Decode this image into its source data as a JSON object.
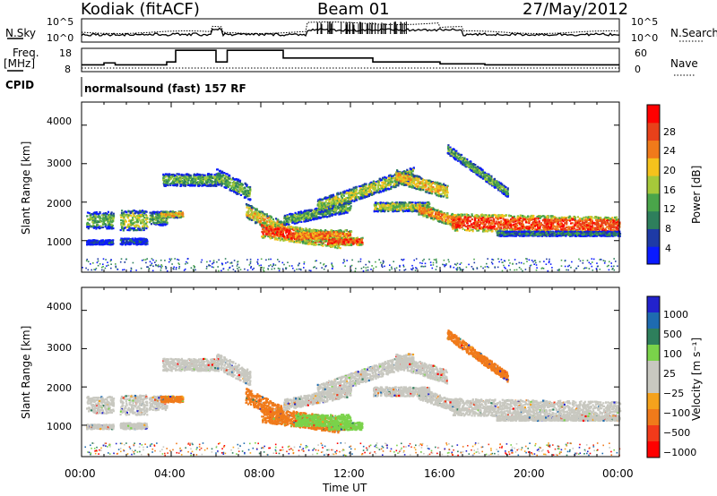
{
  "header": {
    "site": "Kodiak (fitACF)",
    "beam": "Beam 01",
    "date": "27/May/2012"
  },
  "left_labels": {
    "nsky": "N.Sky",
    "freq": "Freq.",
    "freq_unit": "[MHz]",
    "cpid": "CPID"
  },
  "right_labels": {
    "nsearch": "N.Search",
    "nave": "Nave"
  },
  "cpid_text": "normalsound (fast) 157 RF",
  "colors": {
    "power_scale": [
      "#0a1aff",
      "#1e3aa6",
      "#2e7f5c",
      "#4aa54a",
      "#a6c93a",
      "#f5c21c",
      "#f07a1a",
      "#e8411a",
      "#ff0000"
    ],
    "velocity_scale": [
      "#ff0000",
      "#f23a1a",
      "#f07a1a",
      "#f5a21c",
      "#c8c8c0",
      "#c8c8c0",
      "#7ad34a",
      "#2e7f5c",
      "#1e6bb0",
      "#2222cc"
    ]
  },
  "chart_data": [
    {
      "type": "line",
      "name": "noise",
      "series": [
        {
          "name": "N.Sky"
        },
        {
          "name": "N.Search"
        }
      ],
      "yticks": [
        "10^5",
        "10^0"
      ]
    },
    {
      "type": "line",
      "name": "frequency",
      "series": [
        {
          "name": "Freq."
        },
        {
          "name": "Nave"
        }
      ],
      "yticks_left": [
        "18",
        "8"
      ],
      "yticks_right": [
        "60",
        "0"
      ],
      "freq_steps": [
        {
          "t": 0.0,
          "v": 10.5
        },
        {
          "t": 1.0,
          "v": 11.5
        },
        {
          "t": 1.5,
          "v": 10.5
        },
        {
          "t": 3.8,
          "v": 12.0
        },
        {
          "t": 4.2,
          "v": 18.0
        },
        {
          "t": 6.0,
          "v": 12.0
        },
        {
          "t": 6.5,
          "v": 18.0
        },
        {
          "t": 9.0,
          "v": 14.0
        },
        {
          "t": 13.0,
          "v": 12.0
        },
        {
          "t": 16.0,
          "v": 11.0
        },
        {
          "t": 18.0,
          "v": 10.5
        },
        {
          "t": 24.0,
          "v": 10.5
        }
      ]
    },
    {
      "type": "heatmap",
      "name": "power",
      "ylabel": "Slant Range [km]",
      "yticks": [
        "1000",
        "2000",
        "3000",
        "4000"
      ],
      "colorbar_label": "Power [dB]",
      "colorbar_ticks": [
        "4",
        "8",
        "12",
        "16",
        "20",
        "24",
        "28"
      ]
    },
    {
      "type": "heatmap",
      "name": "velocity",
      "ylabel": "Slant Range [km]",
      "yticks": [
        "1000",
        "2000",
        "3000",
        "4000"
      ],
      "xticks": [
        "00:00",
        "04:00",
        "08:00",
        "12:00",
        "16:00",
        "20:00",
        "00:00"
      ],
      "xlabel": "Time UT",
      "colorbar_label": "Velocity [m s⁻¹]",
      "colorbar_ticks": [
        "1000",
        "500",
        "100",
        "25",
        "−25",
        "−100",
        "−500",
        "−1000"
      ]
    }
  ]
}
